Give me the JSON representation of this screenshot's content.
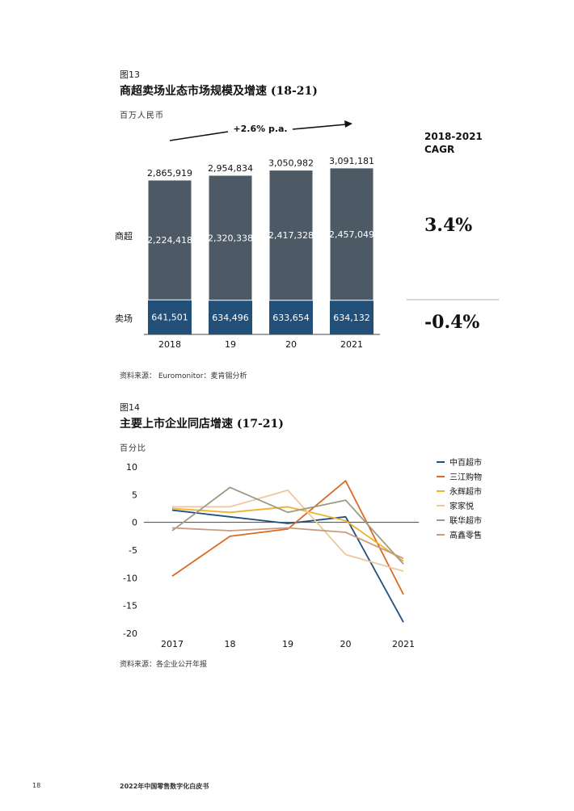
{
  "figure13": {
    "label": "图13",
    "title": "商超卖场业态市场规模及增速 (18-21)",
    "unit": "百万人民币",
    "source": "资料来源： Euromonitor：麦肯锡分析",
    "growth_label": "+2.6% p.a.",
    "cagr_header": [
      "2018-2021",
      "CAGR"
    ],
    "cagr_values": [
      "3.4%",
      "-0.4%"
    ]
  },
  "figure14": {
    "label": "图14",
    "title": "主要上市企业同店增速 (17-21)",
    "unit": "百分比",
    "source": "资料来源：各企业公开年报"
  },
  "footer": {
    "page": "18",
    "doc": "2022年中国零售数字化白皮书"
  },
  "chart_data": [
    {
      "type": "bar",
      "stacked": true,
      "categories": [
        "2018",
        "19",
        "20",
        "2021"
      ],
      "series": [
        {
          "name": "卖场",
          "values": [
            641501,
            634496,
            633654,
            634132
          ],
          "labels": [
            "641,501",
            "634,496",
            "633,654",
            "634,132"
          ],
          "color": "#235079"
        },
        {
          "name": "商超",
          "values": [
            2224418,
            2320338,
            2417328,
            2457049
          ],
          "labels": [
            "2,224,418",
            "2,320,338",
            "2,417,328",
            "2,457,049"
          ],
          "color": "#4d5a66"
        }
      ],
      "totals": [
        2865919,
        2954834,
        3050982,
        3091181
      ],
      "total_labels": [
        "2,865,919",
        "2,954,834",
        "3,050,982",
        "3,091,181"
      ]
    },
    {
      "type": "line",
      "x": [
        "2017",
        "18",
        "19",
        "20",
        "2021"
      ],
      "ylim": [
        -20,
        10
      ],
      "yticks": [
        "10",
        "5",
        "0",
        "-5",
        "-10",
        "-15",
        "-20"
      ],
      "ytick_values": [
        10,
        5,
        0,
        -5,
        -10,
        -15,
        -20
      ],
      "series": [
        {
          "name": "中百超市",
          "values": [
            2.2,
            1.0,
            -0.2,
            1.0,
            -18
          ],
          "color": "#22507e"
        },
        {
          "name": "三江购物",
          "values": [
            -9.7,
            -2.5,
            -1.2,
            7.5,
            -13
          ],
          "color": "#db6b23"
        },
        {
          "name": "永辉超市",
          "values": [
            2.5,
            1.8,
            2.8,
            0.3,
            -7.0
          ],
          "color": "#f2b12b"
        },
        {
          "name": "家家悦",
          "values": [
            2.8,
            2.8,
            5.8,
            -5.8,
            -8.8
          ],
          "color": "#ecc89a"
        },
        {
          "name": "联华超市",
          "values": [
            -1.5,
            6.3,
            1.8,
            4.0,
            -7.5
          ],
          "color": "#9c9b84"
        },
        {
          "name": "高鑫零售",
          "values": [
            -1.0,
            -1.5,
            -1.0,
            -1.8,
            -6.5
          ],
          "color": "#c99a80"
        }
      ]
    }
  ]
}
